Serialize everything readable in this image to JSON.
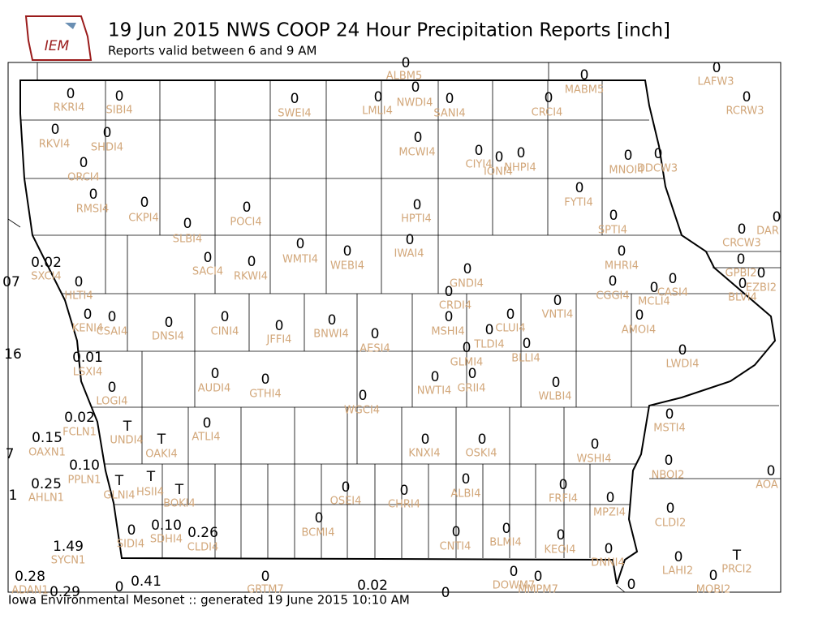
{
  "header": {
    "logo_text": "IEM",
    "title": "19 Jun 2015 NWS COOP 24 Hour Precipitation Reports [inch]",
    "subtitle": "Reports valid between 6 and 9 AM"
  },
  "footer": "Iowa Environmental Mesonet :: generated 19 June 2015 10:10 AM",
  "stations": [
    {
      "id": "RKRI4",
      "value": "0"
    },
    {
      "id": "SIBI4",
      "value": "0"
    },
    {
      "id": "SWEI4",
      "value": "0"
    },
    {
      "id": "LMLI4",
      "value": "0"
    },
    {
      "id": "NWDI4",
      "value": "0"
    },
    {
      "id": "SANI4",
      "value": "0"
    },
    {
      "id": "CRCI4",
      "value": "0"
    },
    {
      "id": "MABM5",
      "value": "0"
    },
    {
      "id": "ALBM5",
      "value": "0"
    },
    {
      "id": "LAFW3",
      "value": "0"
    },
    {
      "id": "RCRW3",
      "value": "0"
    },
    {
      "id": "RKVI4",
      "value": "0"
    },
    {
      "id": "SHDI4",
      "value": "0"
    },
    {
      "id": "ORCI4",
      "value": "0"
    },
    {
      "id": "MCWI4",
      "value": "0"
    },
    {
      "id": "CIYI4",
      "value": "0"
    },
    {
      "id": "IONI4",
      "value": "0"
    },
    {
      "id": "NHPI4",
      "value": "0"
    },
    {
      "id": "MNOI4",
      "value": "0"
    },
    {
      "id": "DDCW3",
      "value": "0"
    },
    {
      "id": "RMSI4",
      "value": "0"
    },
    {
      "id": "CKPI4",
      "value": "0"
    },
    {
      "id": "POCI4",
      "value": "0"
    },
    {
      "id": "SLBI4",
      "value": "0"
    },
    {
      "id": "HPTI4",
      "value": "0"
    },
    {
      "id": "FYTI4",
      "value": "0"
    },
    {
      "id": "SPTI4",
      "value": "0"
    },
    {
      "id": "CRCW3",
      "value": "0"
    },
    {
      "id": "DAR",
      "value": "0"
    },
    {
      "id": "SACI4",
      "value": "0"
    },
    {
      "id": "RKWI4",
      "value": "0"
    },
    {
      "id": "WMTI4",
      "value": "0"
    },
    {
      "id": "WEBI4",
      "value": "0"
    },
    {
      "id": "IWAI4",
      "value": "0"
    },
    {
      "id": "GNDI4",
      "value": "0"
    },
    {
      "id": "MHRI4",
      "value": "0"
    },
    {
      "id": "GPBI2",
      "value": "0"
    },
    {
      "id": "EZBI2",
      "value": "0"
    },
    {
      "id": "SXCI4",
      "value": "0.02"
    },
    {
      "id": "HLTI4",
      "value": "0"
    },
    {
      "value": "07"
    },
    {
      "id": "CRDI4",
      "value": "0"
    },
    {
      "id": "CGGI4",
      "value": "0"
    },
    {
      "id": "MCLI4",
      "value": "0"
    },
    {
      "id": "CASI4",
      "value": "0"
    },
    {
      "id": "BLVI4",
      "value": "0"
    },
    {
      "id": "KENI4",
      "value": "0"
    },
    {
      "id": "CSAI4",
      "value": "0"
    },
    {
      "id": "DNSI4",
      "value": "0"
    },
    {
      "id": "CINI4",
      "value": "0"
    },
    {
      "id": "JFFI4",
      "value": "0"
    },
    {
      "id": "BNWI4",
      "value": "0"
    },
    {
      "id": "AESI4",
      "value": "0"
    },
    {
      "id": "MSHI4",
      "value": "0"
    },
    {
      "id": "CLUI4",
      "value": "0"
    },
    {
      "id": "TLDI4",
      "value": "0"
    },
    {
      "id": "VNTI4",
      "value": "0"
    },
    {
      "id": "AMOI4",
      "value": "0"
    },
    {
      "id": "BLLI4",
      "value": "0"
    },
    {
      "id": "GLMI4",
      "value": "0"
    },
    {
      "id": "LWDI4",
      "value": "0"
    },
    {
      "value": "16"
    },
    {
      "id": "LSXI4",
      "value": "0.01"
    },
    {
      "id": "AUDI4",
      "value": "0"
    },
    {
      "id": "GTHI4",
      "value": "0"
    },
    {
      "id": "NWTI4",
      "value": "0"
    },
    {
      "id": "GRII4",
      "value": "0"
    },
    {
      "id": "WLBI4",
      "value": "0"
    },
    {
      "id": "LOGI4",
      "value": "0"
    },
    {
      "id": "WGCI4",
      "value": "0"
    },
    {
      "id": "MSTI4",
      "value": "0"
    },
    {
      "id": "FCLN1",
      "value": "0.02"
    },
    {
      "id": "UNDI4",
      "value": "T"
    },
    {
      "id": "OAKI4",
      "value": "T"
    },
    {
      "id": "ATLI4",
      "value": "0"
    },
    {
      "id": "KNXI4",
      "value": "0"
    },
    {
      "id": "OSKI4",
      "value": "0"
    },
    {
      "id": "WSHI4",
      "value": "0"
    },
    {
      "id": "OAXN1",
      "value": "0.15"
    },
    {
      "value": "7"
    },
    {
      "id": "PPLN1",
      "value": "0.10"
    },
    {
      "id": "NBOI2",
      "value": "0"
    },
    {
      "id": "AOA",
      "value": "0"
    },
    {
      "id": "GLNI4",
      "value": "T"
    },
    {
      "id": "HSII4",
      "value": "T"
    },
    {
      "id": "BOKI4",
      "value": "T"
    },
    {
      "id": "AHLN1",
      "value": "0.25"
    },
    {
      "value": "1"
    },
    {
      "id": "OSEI4",
      "value": "0"
    },
    {
      "id": "CHRI4",
      "value": "0"
    },
    {
      "id": "ALBI4",
      "value": "0"
    },
    {
      "id": "FRFI4",
      "value": "0"
    },
    {
      "id": "MPZI4",
      "value": "0"
    },
    {
      "id": "CLDI2",
      "value": "0"
    },
    {
      "id": "BCMI4",
      "value": "0"
    },
    {
      "id": "SIDI4",
      "value": "0"
    },
    {
      "id": "SDHI4",
      "value": "0.10"
    },
    {
      "id": "CLDI4",
      "value": "0.26"
    },
    {
      "id": "CNTI4",
      "value": "0"
    },
    {
      "id": "BLMI4",
      "value": "0"
    },
    {
      "id": "KEOI4",
      "value": "0"
    },
    {
      "id": "DNNI4",
      "value": "0"
    },
    {
      "id": "LAHI2",
      "value": "0"
    },
    {
      "id": "PRCI2",
      "value": "T"
    },
    {
      "id": "MOBI2",
      "value": "0"
    },
    {
      "id": "SYCN1",
      "value": "1.49"
    },
    {
      "id": "ADAN1",
      "value": "0.28"
    },
    {
      "value": "0.29"
    },
    {
      "value": "0.41"
    },
    {
      "value": "0"
    },
    {
      "id": "GRTM7",
      "value": "0"
    },
    {
      "id": "DOWM7",
      "value": "0"
    },
    {
      "id": "MMPM7",
      "value": "0"
    },
    {
      "value": "0.02"
    },
    {
      "value": "0"
    },
    {
      "value": "0"
    }
  ]
}
